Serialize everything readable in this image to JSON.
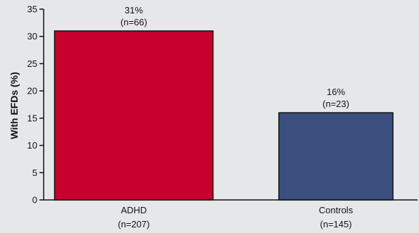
{
  "chart_data": {
    "type": "bar",
    "categories": [
      "ADHD",
      "Controls"
    ],
    "category_sublabels": [
      "(n=207)",
      "(n=145)"
    ],
    "values": [
      31,
      16
    ],
    "data_labels": [
      "31%",
      "16%"
    ],
    "data_sublabels": [
      "(n=66)",
      "(n=23)"
    ],
    "ylabel": "With EFDs (%)",
    "ylim": [
      0,
      35
    ],
    "yticks": [
      0,
      5,
      10,
      15,
      20,
      25,
      30,
      35
    ],
    "colors": [
      "#c8002d",
      "#3a4f7e"
    ],
    "grid": false
  }
}
